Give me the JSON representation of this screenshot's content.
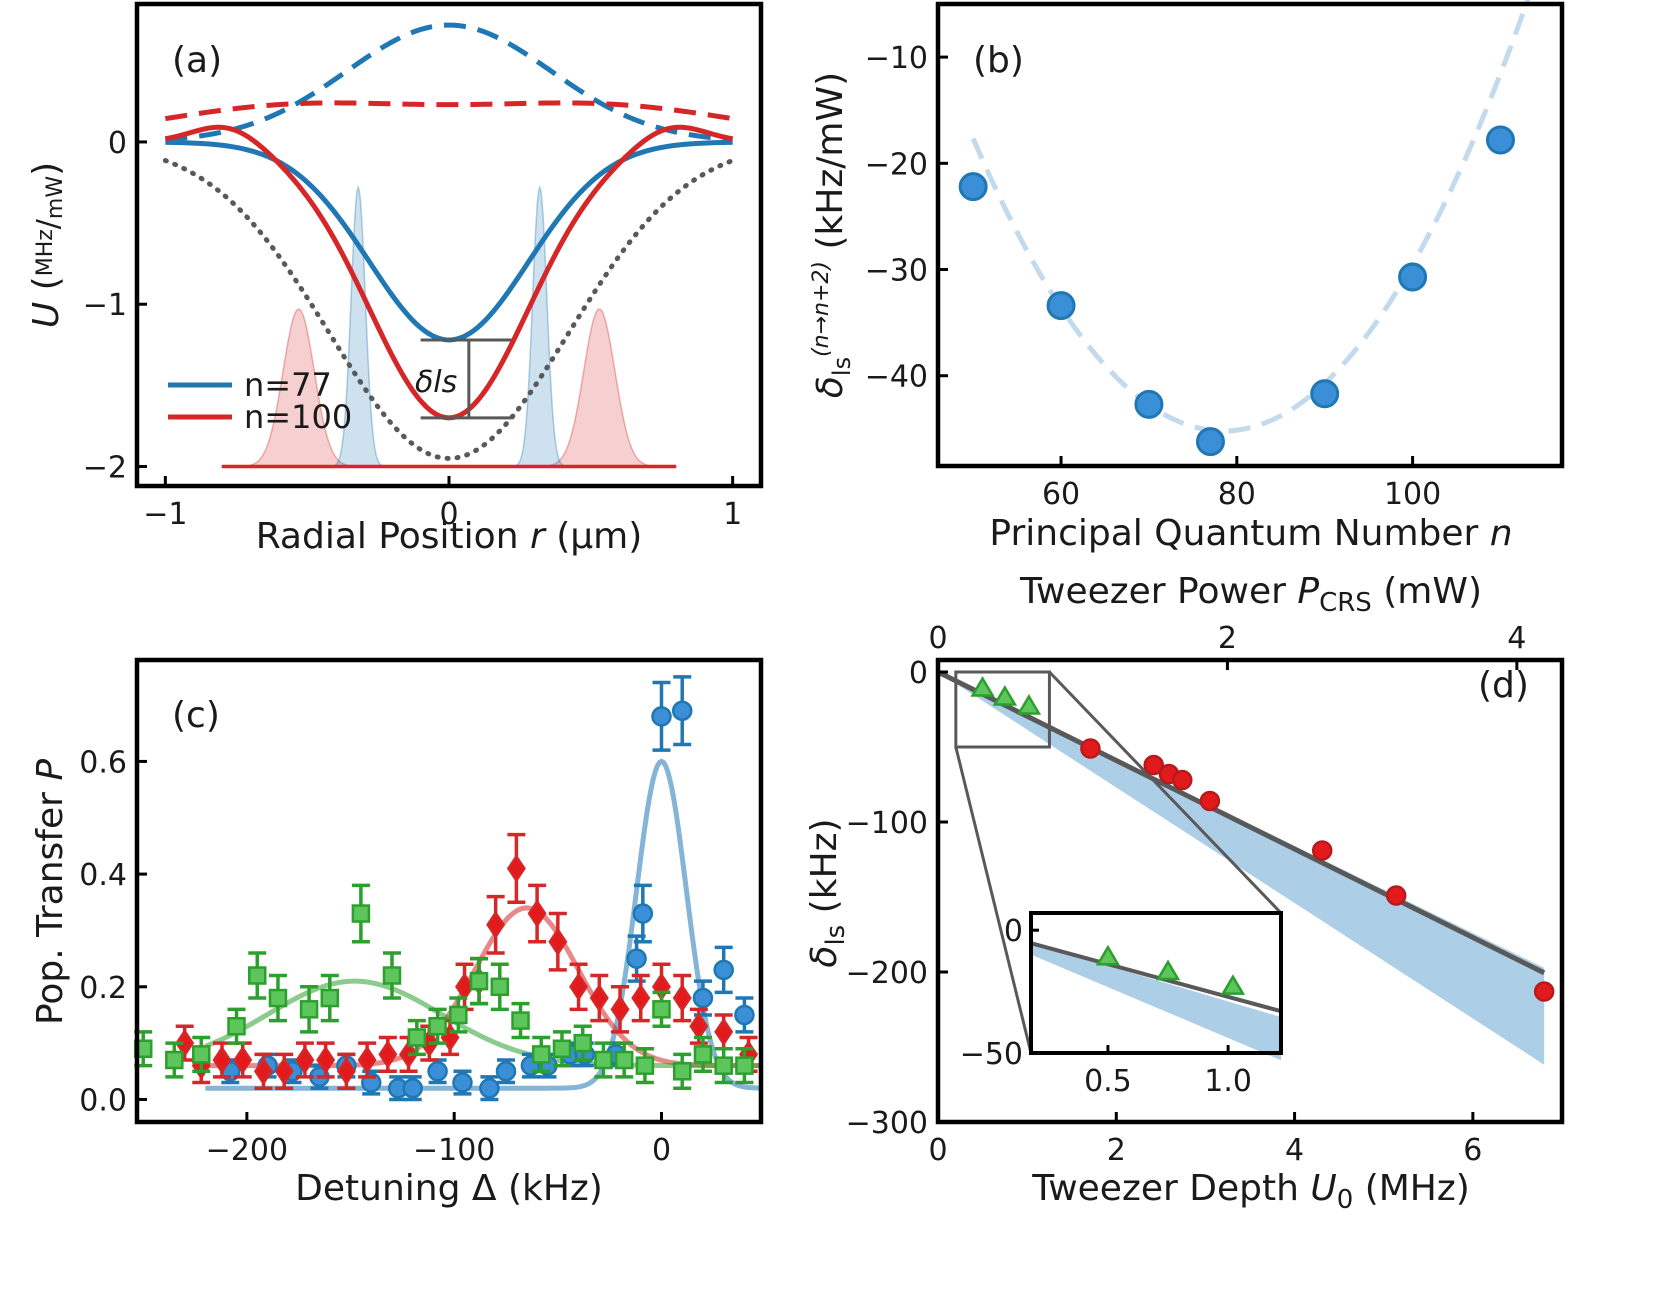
{
  "colors": {
    "blue": "#1f77b4",
    "red": "#d62728",
    "green": "#2ca02c",
    "gray": "#595959",
    "light_blue": "#a9cbe6",
    "band_blue": "#9ec5e3",
    "marker_blue": "#3a8fd6",
    "marker_red": "#e31a1c",
    "marker_green": "#5cc55c"
  },
  "chart_data": [
    {
      "id": "a",
      "panel_label": "(a)",
      "type": "line",
      "xlabel": "Radial Position r (μm)",
      "ylabel": "U (MHz/mW)",
      "xlim": [
        -1.1,
        1.1
      ],
      "ylim": [
        -2.12,
        0.85
      ],
      "xticks": [
        "−1",
        "0",
        "1"
      ],
      "xtick_values": [
        -1,
        0,
        1
      ],
      "yticks": [
        "−2",
        "−1",
        "0"
      ],
      "ytick_values": [
        -2,
        -1,
        0
      ],
      "annotation": "δls",
      "legend": [
        {
          "label": "n=77",
          "color": "#1f77b4"
        },
        {
          "label": "n=100",
          "color": "#d62728"
        }
      ],
      "legend_position": "bottom-left",
      "curves": {
        "dotted_trap_depth": -1.95,
        "dotted_trap_waist": 0.42,
        "n77_depth": -1.22,
        "n100_depth": -1.7,
        "n77_dashed_peak": 0.72,
        "n100_dashed_center": 0.23,
        "n100_dashed_shoulder": 0.3
      },
      "wavefunctions": {
        "n77_peak_r": 0.32,
        "n77_height": 1.72,
        "n100_peak_r": 0.53,
        "n100_height": 0.97,
        "baseline": -2.0
      }
    },
    {
      "id": "b",
      "panel_label": "(b)",
      "type": "scatter",
      "xlabel": "Principal Quantum Number n",
      "ylabel": "δls(n→n+2) (kHz/mW)",
      "xlim": [
        46,
        117
      ],
      "ylim": [
        -48.5,
        -5
      ],
      "xticks": [
        "60",
        "80",
        "100"
      ],
      "xtick_values": [
        60,
        80,
        100
      ],
      "yticks": [
        "−40",
        "−30",
        "−20",
        "−10"
      ],
      "ytick_values": [
        -40,
        -30,
        -20,
        -10
      ],
      "x": [
        50,
        60,
        70,
        77,
        90,
        100,
        110
      ],
      "y": [
        -22.2,
        -33.4,
        -42.7,
        -46.2,
        -41.7,
        -30.7,
        -17.8
      ],
      "fit": {
        "type": "quadratic",
        "vertex_x": 78.5,
        "vertex_y": -45.2,
        "a": 0.0339,
        "x_range": [
          50,
          115
        ]
      }
    },
    {
      "id": "c",
      "panel_label": "(c)",
      "type": "scatter",
      "xlabel": "Detuning Δ (kHz)",
      "ylabel": "Pop. Transfer P",
      "xlim": [
        -253,
        48
      ],
      "ylim": [
        -0.04,
        0.78
      ],
      "xticks": [
        "−200",
        "−100",
        "0"
      ],
      "xtick_values": [
        -200,
        -100,
        0
      ],
      "yticks": [
        "0.0",
        "0.2",
        "0.4",
        "0.6"
      ],
      "ytick_values": [
        0,
        0.2,
        0.4,
        0.6
      ],
      "series": [
        {
          "color": "blue",
          "marker": "circle",
          "x": [
            -208,
            -190,
            -178,
            -165,
            -152,
            -140,
            -127,
            -120,
            -108,
            -96,
            -83,
            -75,
            -63,
            -55,
            -44,
            -37,
            -22,
            -12,
            -9,
            0,
            10,
            20,
            30,
            40
          ],
          "y": [
            0.05,
            0.06,
            0.05,
            0.04,
            0.06,
            0.03,
            0.02,
            0.02,
            0.05,
            0.03,
            0.02,
            0.05,
            0.06,
            0.06,
            0.08,
            0.08,
            0.08,
            0.25,
            0.33,
            0.68,
            0.69,
            0.18,
            0.23,
            0.15
          ],
          "err": [
            0.02,
            0.02,
            0.02,
            0.02,
            0.02,
            0.02,
            0.02,
            0.02,
            0.02,
            0.02,
            0.02,
            0.02,
            0.02,
            0.02,
            0.02,
            0.02,
            0.02,
            0.04,
            0.05,
            0.06,
            0.06,
            0.03,
            0.04,
            0.03
          ],
          "fit": {
            "center": 0,
            "amplitude": 0.58,
            "width": 12,
            "offset": 0.02
          }
        },
        {
          "color": "red",
          "marker": "diamond",
          "x": [
            -230,
            -222,
            -212,
            -202,
            -192,
            -182,
            -172,
            -162,
            -152,
            -142,
            -132,
            -122,
            -112,
            -102,
            -95,
            -88,
            -80,
            -70,
            -60,
            -50,
            -40,
            -30,
            -20,
            -10,
            0,
            10,
            18,
            30,
            42
          ],
          "y": [
            0.1,
            0.06,
            0.07,
            0.07,
            0.05,
            0.05,
            0.07,
            0.07,
            0.05,
            0.07,
            0.08,
            0.08,
            0.1,
            0.11,
            0.2,
            0.21,
            0.31,
            0.41,
            0.33,
            0.28,
            0.2,
            0.18,
            0.16,
            0.18,
            0.2,
            0.18,
            0.13,
            0.12,
            0.08
          ],
          "err": [
            0.03,
            0.03,
            0.03,
            0.03,
            0.03,
            0.03,
            0.03,
            0.03,
            0.03,
            0.03,
            0.03,
            0.03,
            0.03,
            0.03,
            0.04,
            0.04,
            0.05,
            0.06,
            0.05,
            0.05,
            0.04,
            0.04,
            0.04,
            0.04,
            0.04,
            0.04,
            0.03,
            0.03,
            0.03
          ],
          "fit": {
            "center": -65,
            "amplitude": 0.28,
            "width": 25,
            "offset": 0.06
          }
        },
        {
          "color": "green",
          "marker": "square",
          "x": [
            -250,
            -235,
            -222,
            -205,
            -195,
            -185,
            -170,
            -160,
            -145,
            -130,
            -118,
            -108,
            -98,
            -88,
            -78,
            -68,
            -58,
            -48,
            -38,
            -28,
            -18,
            -8,
            0,
            10,
            20,
            30,
            40
          ],
          "y": [
            0.09,
            0.07,
            0.08,
            0.13,
            0.22,
            0.18,
            0.16,
            0.18,
            0.33,
            0.22,
            0.11,
            0.13,
            0.15,
            0.21,
            0.2,
            0.14,
            0.08,
            0.09,
            0.1,
            0.07,
            0.07,
            0.06,
            0.16,
            0.05,
            0.08,
            0.06,
            0.06
          ],
          "err": [
            0.03,
            0.03,
            0.03,
            0.03,
            0.04,
            0.04,
            0.04,
            0.04,
            0.05,
            0.04,
            0.03,
            0.03,
            0.03,
            0.04,
            0.04,
            0.03,
            0.03,
            0.03,
            0.03,
            0.03,
            0.03,
            0.03,
            0.03,
            0.03,
            0.03,
            0.03,
            0.03
          ],
          "fit": {
            "center": -148,
            "amplitude": 0.15,
            "width": 42,
            "offset": 0.06
          }
        }
      ]
    },
    {
      "id": "d",
      "panel_label": "(d)",
      "type": "scatter",
      "xlabel": "Tweezer Depth U0 (MHz)",
      "ylabel": "δls (kHz)",
      "top_xlabel": "Tweezer Power PCRS (mW)",
      "xlim": [
        0,
        7.0
      ],
      "ylim": [
        -300,
        8
      ],
      "xticks": [
        "0",
        "2",
        "4",
        "6"
      ],
      "xtick_values": [
        0,
        2,
        4,
        6
      ],
      "top_xticks": [
        "0",
        "2",
        "4"
      ],
      "top_xtick_values": [
        0,
        2,
        4
      ],
      "power_per_depth": 0.616,
      "yticks": [
        "−300",
        "−200",
        "−100",
        "0"
      ],
      "ytick_values": [
        -300,
        -200,
        -100,
        0
      ],
      "red_points": {
        "x": [
          1.71,
          2.42,
          2.59,
          2.74,
          3.05,
          4.31,
          5.14,
          6.8
        ],
        "y": [
          -51,
          -62,
          -68,
          -72,
          -86,
          -119,
          -149,
          -213
        ]
      },
      "green_points": {
        "x": [
          0.5,
          0.75,
          1.02
        ],
        "y": [
          -11,
          -17,
          -23
        ]
      },
      "fit_line": {
        "slope": -29.5,
        "intercept": 0
      },
      "band": {
        "upper_slope": -29.0,
        "lower_slope": -38.5
      },
      "zoom_box": {
        "x": [
          0.2,
          1.25
        ],
        "y": [
          -50,
          0
        ]
      },
      "inset": {
        "xlim": [
          0.18,
          1.22
        ],
        "ylim": [
          -50,
          7
        ],
        "xticks": [
          "0.5",
          "1.0"
        ],
        "xtick_values": [
          0.5,
          1.0
        ],
        "yticks": [
          "−50",
          "0"
        ],
        "ytick_values": [
          -50,
          0
        ]
      }
    }
  ]
}
